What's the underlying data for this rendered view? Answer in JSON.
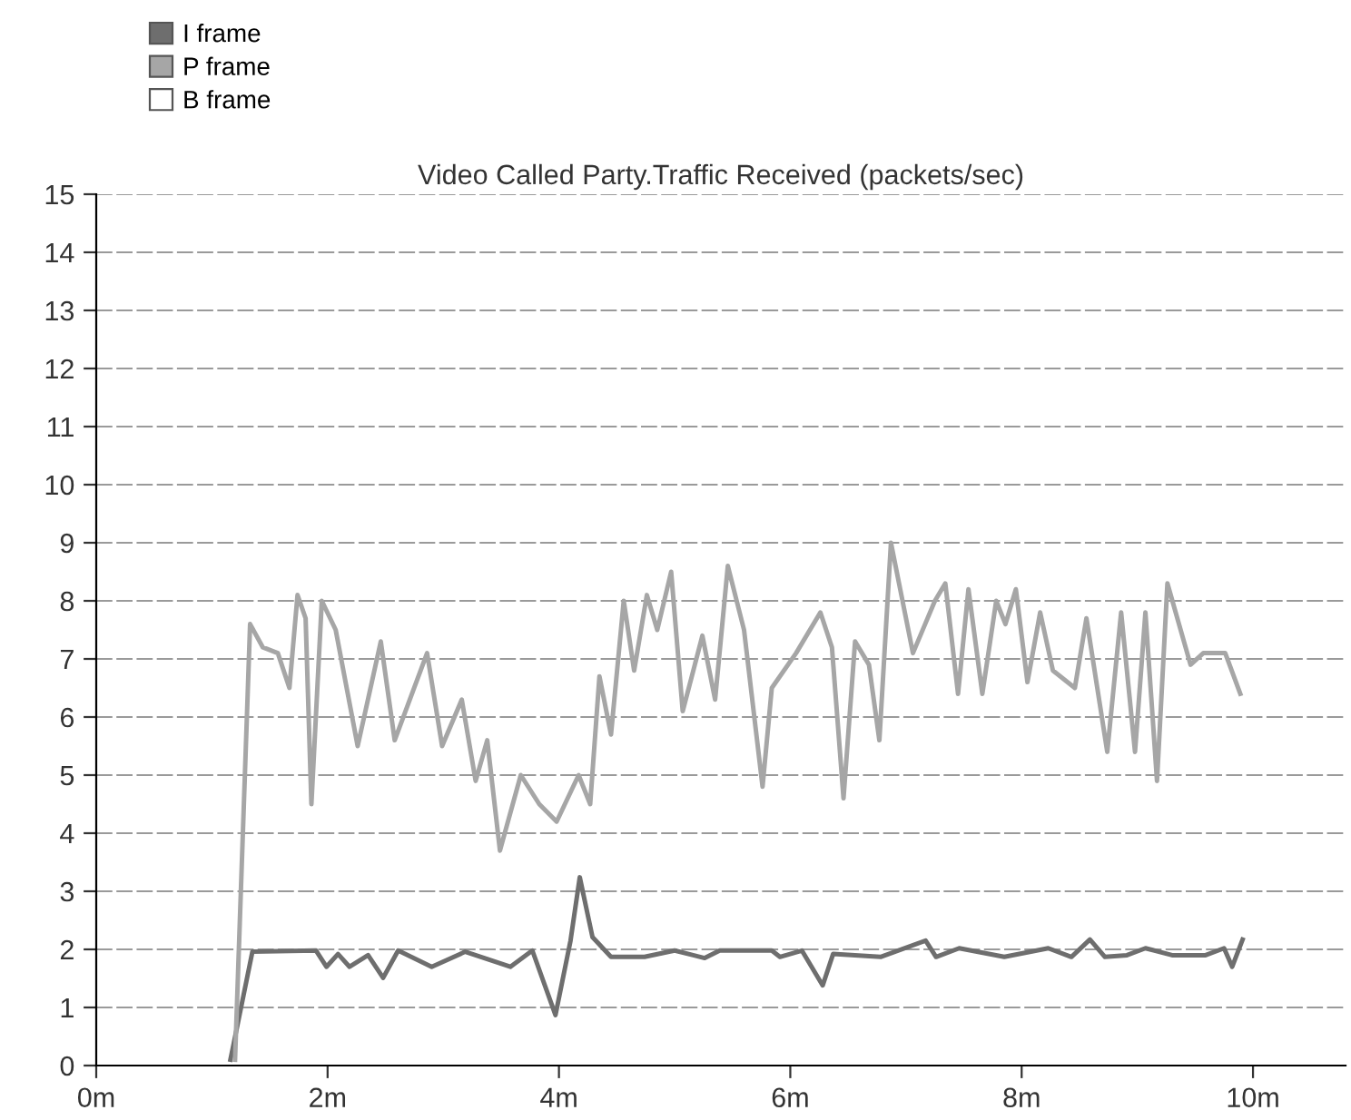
{
  "chart_data": {
    "type": "line",
    "title": "Video Called Party.Traffic Received (packets/sec)",
    "xlim": [
      0,
      10.8
    ],
    "ylim": [
      0,
      15
    ],
    "xticks": [
      {
        "value": 0,
        "label": "0m"
      },
      {
        "value": 2,
        "label": "2m"
      },
      {
        "value": 4,
        "label": "4m"
      },
      {
        "value": 6,
        "label": "6m"
      },
      {
        "value": 8,
        "label": "8m"
      },
      {
        "value": 10,
        "label": "10m"
      }
    ],
    "yticks": [
      0,
      1,
      2,
      3,
      4,
      5,
      6,
      7,
      8,
      9,
      10,
      11,
      12,
      13,
      14,
      15
    ],
    "grid": "y",
    "legend": "top left",
    "marker": "none",
    "line_style": "solid",
    "series": [
      {
        "name": "I frame",
        "color": "#6e6e6e",
        "x": [
          1.16,
          1.35,
          1.9,
          1.99,
          2.09,
          2.19,
          2.35,
          2.48,
          2.61,
          2.9,
          3.19,
          3.58,
          3.77,
          3.97,
          4.1,
          4.18,
          4.29,
          4.45,
          4.74,
          5.0,
          5.26,
          5.39,
          5.84,
          5.91,
          6.1,
          6.28,
          6.37,
          6.78,
          7.17,
          7.26,
          7.46,
          7.85,
          8.23,
          8.43,
          8.59,
          8.72,
          8.91,
          9.07,
          9.3,
          9.59,
          9.75,
          9.82,
          9.91
        ],
        "values": [
          0.1,
          1.96,
          1.98,
          1.7,
          1.92,
          1.7,
          1.9,
          1.51,
          1.98,
          1.7,
          1.96,
          1.7,
          1.98,
          0.87,
          2.15,
          3.24,
          2.21,
          1.87,
          1.87,
          1.98,
          1.85,
          1.98,
          1.98,
          1.87,
          1.98,
          1.38,
          1.92,
          1.87,
          2.15,
          1.87,
          2.02,
          1.87,
          2.02,
          1.87,
          2.17,
          1.87,
          1.9,
          2.02,
          1.9,
          1.9,
          2.02,
          1.7,
          2.17
        ]
      },
      {
        "name": "P frame",
        "color": "#a6a6a6",
        "x": [
          1.2,
          1.33,
          1.44,
          1.57,
          1.67,
          1.74,
          1.81,
          1.86,
          1.95,
          2.07,
          2.26,
          2.46,
          2.58,
          2.86,
          2.99,
          3.16,
          3.28,
          3.38,
          3.49,
          3.67,
          3.83,
          3.98,
          4.17,
          4.27,
          4.35,
          4.45,
          4.56,
          4.65,
          4.76,
          4.85,
          4.97,
          5.07,
          5.24,
          5.35,
          5.46,
          5.6,
          5.76,
          5.84,
          6.05,
          6.26,
          6.36,
          6.46,
          6.56,
          6.68,
          6.77,
          6.87,
          7.06,
          7.25,
          7.34,
          7.45,
          7.54,
          7.66,
          7.78,
          7.86,
          7.95,
          8.05,
          8.16,
          8.27,
          8.46,
          8.56,
          8.74,
          8.86,
          8.98,
          9.07,
          9.17,
          9.26,
          9.46,
          9.57,
          9.76,
          9.89
        ],
        "values": [
          0.1,
          7.6,
          7.2,
          7.1,
          6.5,
          8.1,
          7.7,
          4.5,
          8.0,
          7.5,
          5.5,
          7.3,
          5.6,
          7.1,
          5.5,
          6.3,
          4.9,
          5.6,
          3.7,
          5.0,
          4.5,
          4.2,
          5.0,
          4.5,
          6.7,
          5.7,
          8.0,
          6.8,
          8.1,
          7.5,
          8.5,
          6.1,
          7.4,
          6.3,
          8.6,
          7.5,
          4.8,
          6.5,
          7.1,
          7.8,
          7.2,
          4.6,
          7.3,
          6.9,
          5.6,
          9.0,
          7.1,
          8.0,
          8.3,
          6.4,
          8.2,
          6.4,
          8.0,
          7.6,
          8.2,
          6.6,
          7.8,
          6.8,
          6.5,
          7.7,
          5.4,
          7.8,
          5.4,
          7.8,
          4.9,
          8.3,
          6.9,
          7.1,
          7.1,
          6.4
        ]
      },
      {
        "name": "B frame",
        "color": "#ffffff"
      }
    ]
  }
}
